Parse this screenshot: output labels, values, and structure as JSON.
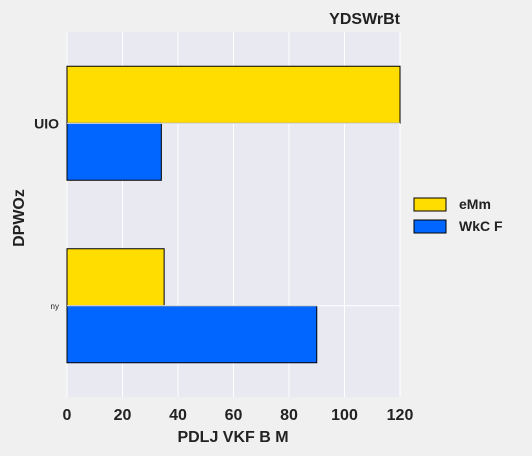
{
  "chart_data": {
    "type": "bar",
    "orientation": "horizontal",
    "title": "YDSWrBt",
    "xlabel": "PDLJ VKF B M",
    "ylabel": "DPWOz",
    "xlim": [
      0,
      120
    ],
    "xticks": [
      0,
      20,
      40,
      60,
      80,
      100,
      120
    ],
    "grid": true,
    "legend_position": "right",
    "categories": [
      "UIO",
      "ny"
    ],
    "series": [
      {
        "name": "eMm",
        "color": "#ffdd00",
        "values": [
          120,
          35
        ]
      },
      {
        "name": "WkC F",
        "color": "#0066ff",
        "values": [
          34,
          90
        ]
      }
    ]
  }
}
